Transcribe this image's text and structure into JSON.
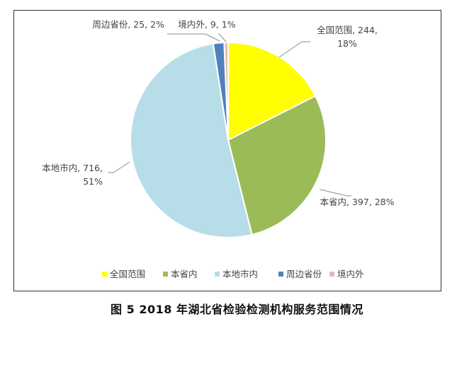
{
  "chart_data": {
    "type": "pie",
    "slices": [
      {
        "name": "全国范围",
        "value": 244,
        "percent": "18%",
        "color": "#FFFF00",
        "label_lines": [
          "全国范围, 244,",
          "18%"
        ]
      },
      {
        "name": "本省内",
        "value": 397,
        "percent": "28%",
        "color": "#9BBB59",
        "label_lines": [
          "本省内, 397, 28%"
        ]
      },
      {
        "name": "本地市内",
        "value": 716,
        "percent": "51%",
        "color": "#B7DEE8",
        "label_lines": [
          "本地市内, 716,",
          "51%"
        ]
      },
      {
        "name": "周边省份",
        "value": 25,
        "percent": "2%",
        "color": "#4F81BD",
        "label_lines": [
          "周边省份, 25, 2%"
        ]
      },
      {
        "name": "境内外",
        "value": 9,
        "percent": "1%",
        "color": "#E6B9B8",
        "label_lines": [
          "境内外, 9, 1%"
        ]
      }
    ],
    "legend_position": "bottom"
  },
  "caption": "图 5    2018 年湖北省检验检测机构服务范围情况"
}
